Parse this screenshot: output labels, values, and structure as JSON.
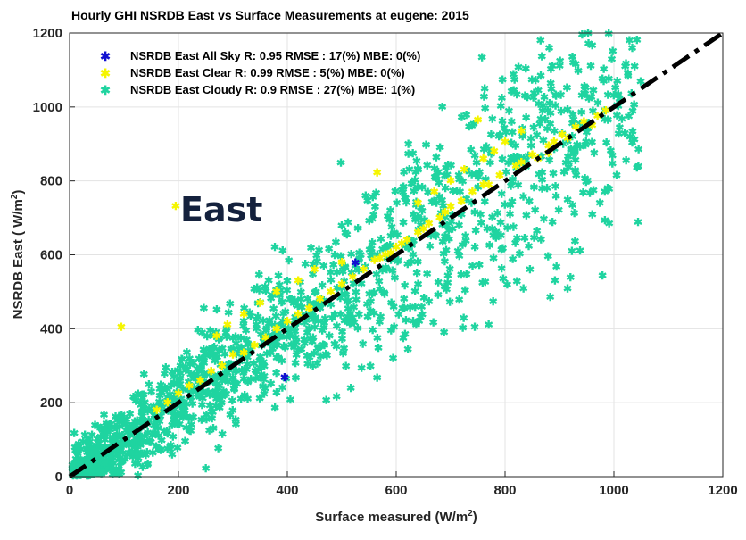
{
  "chart_data": {
    "type": "scatter",
    "title": "Hourly GHI NSRDB East vs Surface Measurements at eugene: 2015",
    "xlabel": "Surface measured (W/m",
    "xlabel_sup": "2",
    "xlabel_end": ")",
    "ylabel": "NSRDB East ( W/m",
    "ylabel_sup": "2",
    "ylabel_end": ")",
    "xlim": [
      0,
      1200
    ],
    "ylim": [
      0,
      1200
    ],
    "xticks": [
      "0",
      "200",
      "400",
      "600",
      "800",
      "1000",
      "1200"
    ],
    "yticks": [
      "0",
      "200",
      "400",
      "600",
      "800",
      "1000",
      "1200"
    ],
    "grid": true,
    "legend_position": "top-left",
    "annotation": "East",
    "reference_line": {
      "style": "dash-dot",
      "color": "#000000",
      "from": [
        0,
        0
      ],
      "to": [
        1200,
        1200
      ]
    },
    "series": [
      {
        "name": "NSRDB East All Sky R: 0.95 RMSE : 17(%) MBE: 0(%)",
        "color": "#1010d0",
        "marker": "asterisk",
        "points": [
          [
            525,
            578
          ],
          [
            395,
            268
          ]
        ]
      },
      {
        "name": "NSRDB East Clear R: 0.99 RMSE : 5(%) MBE: 0(%)",
        "color": "#f5f500",
        "marker": "asterisk",
        "points": [
          [
            95,
            405
          ],
          [
            195,
            732
          ],
          [
            565,
            822
          ],
          [
            750,
            965
          ],
          [
            905,
            925
          ],
          [
            930,
            945
          ],
          [
            960,
            950
          ],
          [
            880,
            895
          ],
          [
            850,
            870
          ],
          [
            820,
            840
          ],
          [
            790,
            815
          ],
          [
            760,
            790
          ],
          [
            740,
            770
          ],
          [
            700,
            730
          ],
          [
            680,
            700
          ],
          [
            650,
            670
          ],
          [
            620,
            640
          ],
          [
            600,
            620
          ],
          [
            580,
            600
          ],
          [
            560,
            585
          ],
          [
            540,
            560
          ],
          [
            520,
            540
          ],
          [
            500,
            520
          ],
          [
            480,
            500
          ],
          [
            460,
            480
          ],
          [
            440,
            455
          ],
          [
            420,
            440
          ],
          [
            400,
            420
          ],
          [
            380,
            400
          ],
          [
            360,
            375
          ],
          [
            340,
            355
          ],
          [
            320,
            335
          ],
          [
            860,
            860
          ],
          [
            890,
            905
          ],
          [
            915,
            915
          ],
          [
            945,
            960
          ],
          [
            970,
            975
          ],
          [
            985,
            990
          ],
          [
            880,
            875
          ],
          [
            830,
            850
          ],
          [
            770,
            790
          ],
          [
            720,
            745
          ],
          [
            690,
            715
          ],
          [
            660,
            685
          ],
          [
            640,
            660
          ],
          [
            610,
            630
          ],
          [
            590,
            605
          ],
          [
            570,
            590
          ],
          [
            300,
            330
          ],
          [
            280,
            300
          ],
          [
            260,
            285
          ],
          [
            240,
            260
          ],
          [
            220,
            245
          ],
          [
            200,
            225
          ],
          [
            180,
            200
          ],
          [
            160,
            180
          ],
          [
            500,
            580
          ],
          [
            450,
            560
          ],
          [
            420,
            530
          ],
          [
            380,
            500
          ],
          [
            350,
            470
          ],
          [
            320,
            440
          ],
          [
            290,
            410
          ],
          [
            270,
            380
          ],
          [
            830,
            935
          ],
          [
            800,
            905
          ],
          [
            780,
            880
          ],
          [
            760,
            860
          ],
          [
            725,
            830
          ],
          [
            700,
            800
          ],
          [
            670,
            770
          ],
          [
            640,
            740
          ]
        ]
      },
      {
        "name": "NSRDB East Cloudy R: 0.9 RMSE : 27(%) MBE: 1(%)",
        "color": "#1fd4a0",
        "marker": "asterisk",
        "generated": {
          "count": 1400,
          "x_range": [
            5,
            1050
          ],
          "slope": 1.0,
          "spread": 0.28
        }
      }
    ]
  }
}
